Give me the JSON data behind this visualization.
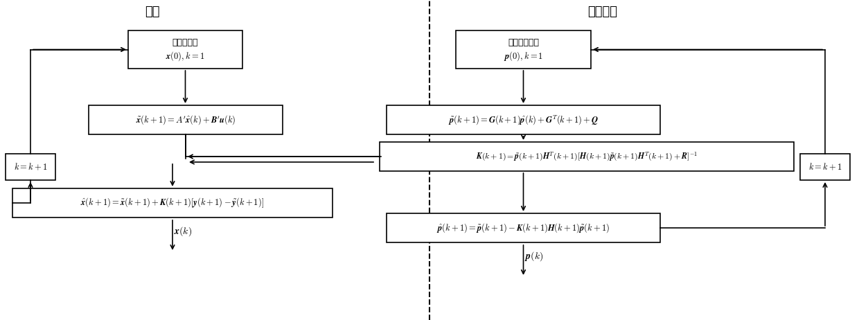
{
  "title_left": "滤波",
  "title_right": "增益计算",
  "bg_color": "#ffffff",
  "left_init_text1": "给出初始值",
  "left_init_text2": "$\\boldsymbol{x}(0), k=1$",
  "left_box2_text": "$\\tilde{\\boldsymbol{x}}(k+1) = A'\\hat{\\boldsymbol{x}}(k) + \\boldsymbol{B}'\\boldsymbol{u}(k)$",
  "left_box3_text": "$\\hat{\\boldsymbol{x}}(k+1) = \\tilde{\\boldsymbol{x}}(k+1) + \\boldsymbol{K}(k+1)[\\boldsymbol{y}(k+1) - \\tilde{\\boldsymbol{y}}(k+1)]$",
  "left_kbox_text": "$k = k+1$",
  "left_xk_text": "$\\boldsymbol{x}(k)$",
  "right_init_text1": "给出方差初值",
  "right_init_text2": "$\\boldsymbol{p}(0), k=1$",
  "right_box2_text": "$\\tilde{\\boldsymbol{p}}(k+1) = \\boldsymbol{G}(k+1)\\hat{\\boldsymbol{p}}(k) + \\boldsymbol{G}^T(k+1) + \\boldsymbol{Q}$",
  "right_box3_text": "$\\boldsymbol{K}(k+1) = \\tilde{\\boldsymbol{p}}(k+1)\\boldsymbol{H}^T(k+1)[\\boldsymbol{H}(k+1)\\tilde{\\boldsymbol{p}}(k+1)\\boldsymbol{H}^T(k+1)+\\boldsymbol{R}]^{-1}$",
  "right_box4_text": "$\\hat{\\boldsymbol{p}}(k+1) = \\tilde{\\boldsymbol{p}}(k+1) - \\boldsymbol{K}(k+1)\\boldsymbol{H}(k+1)\\tilde{\\boldsymbol{p}}(k+1)$",
  "right_kbox_text": "$k = k+1$",
  "right_pk_text": "$\\boldsymbol{p}(k)$"
}
